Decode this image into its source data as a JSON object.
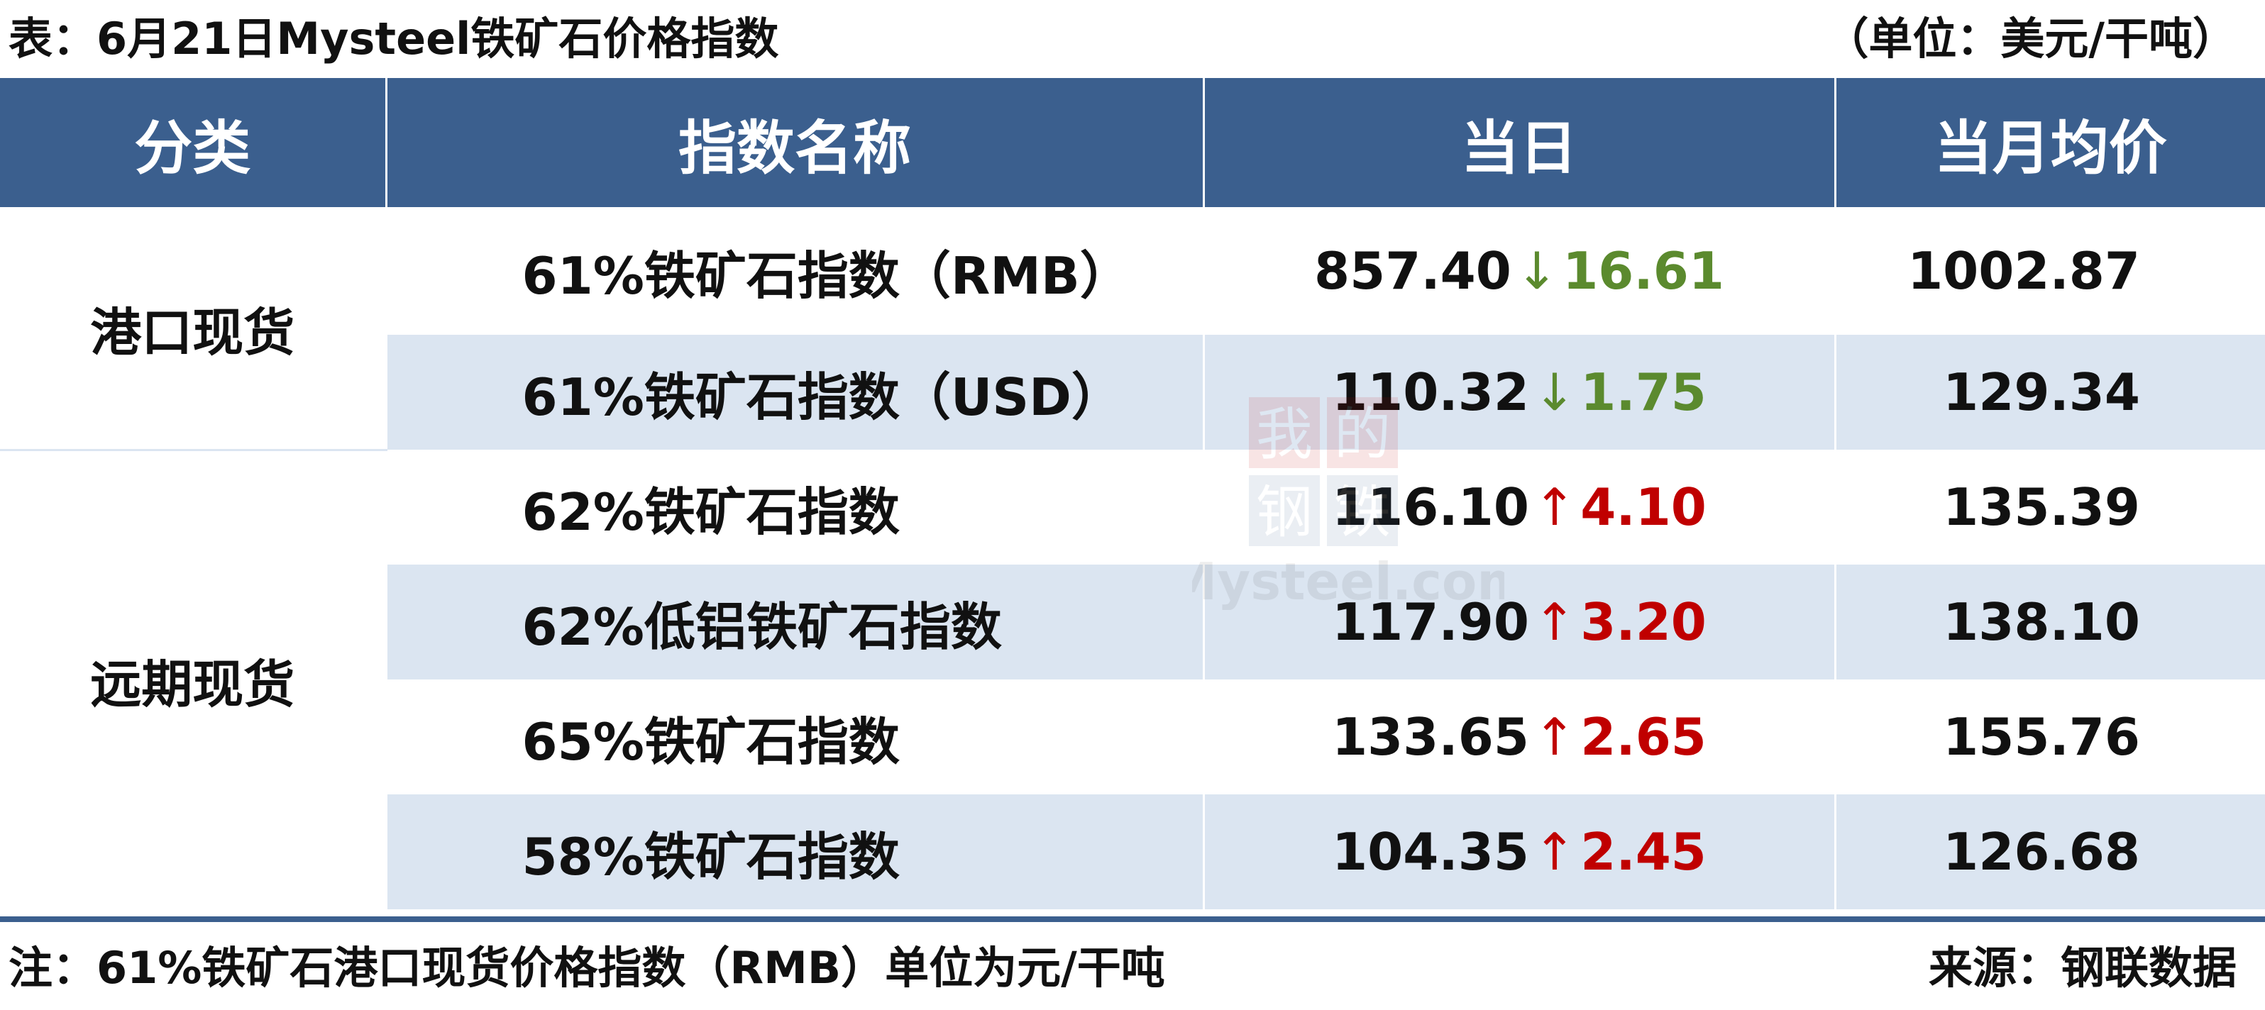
{
  "caption": {
    "title": "表：6月21日Mysteel铁矿石价格指数",
    "unit": "（单位：美元/干吨）"
  },
  "table": {
    "headers": [
      "分类",
      "指数名称",
      "当日",
      "当月均价"
    ],
    "groups": [
      {
        "category": "港口现货",
        "rows": [
          {
            "name": "61%铁矿石指数（RMB）",
            "today": "857.40",
            "direction": "down",
            "arrow": "↓",
            "change": "16.61",
            "avg": "1002.87"
          },
          {
            "name": "61%铁矿石指数（USD）",
            "today": "110.32",
            "direction": "down",
            "arrow": "↓",
            "change": "1.75",
            "avg": "129.34"
          }
        ]
      },
      {
        "category": "远期现货",
        "rows": [
          {
            "name": "62%铁矿石指数",
            "today": "116.10",
            "direction": "up",
            "arrow": "↑",
            "change": "4.10",
            "avg": "135.39"
          },
          {
            "name": "62%低铝铁矿石指数",
            "today": "117.90",
            "direction": "up",
            "arrow": "↑",
            "change": "3.20",
            "avg": "138.10"
          },
          {
            "name": "65%铁矿石指数",
            "today": "133.65",
            "direction": "up",
            "arrow": "↑",
            "change": "2.65",
            "avg": "155.76"
          },
          {
            "name": "58%铁矿石指数",
            "today": "104.35",
            "direction": "up",
            "arrow": "↑",
            "change": "2.45",
            "avg": "126.68"
          }
        ]
      }
    ]
  },
  "footer": {
    "note": "注：61%铁矿石港口现货价格指数（RMB）单位为元/干吨",
    "source": "来源：钢联数据"
  },
  "watermark": {
    "brand_chars": [
      "我",
      "的",
      "钢",
      "铁"
    ],
    "site": "Mysteel.com"
  },
  "colors": {
    "header_bg": "#3b5f8e",
    "stripe_bg": "#dbe5f1",
    "down": "#5b8a2e",
    "up": "#c00000"
  }
}
